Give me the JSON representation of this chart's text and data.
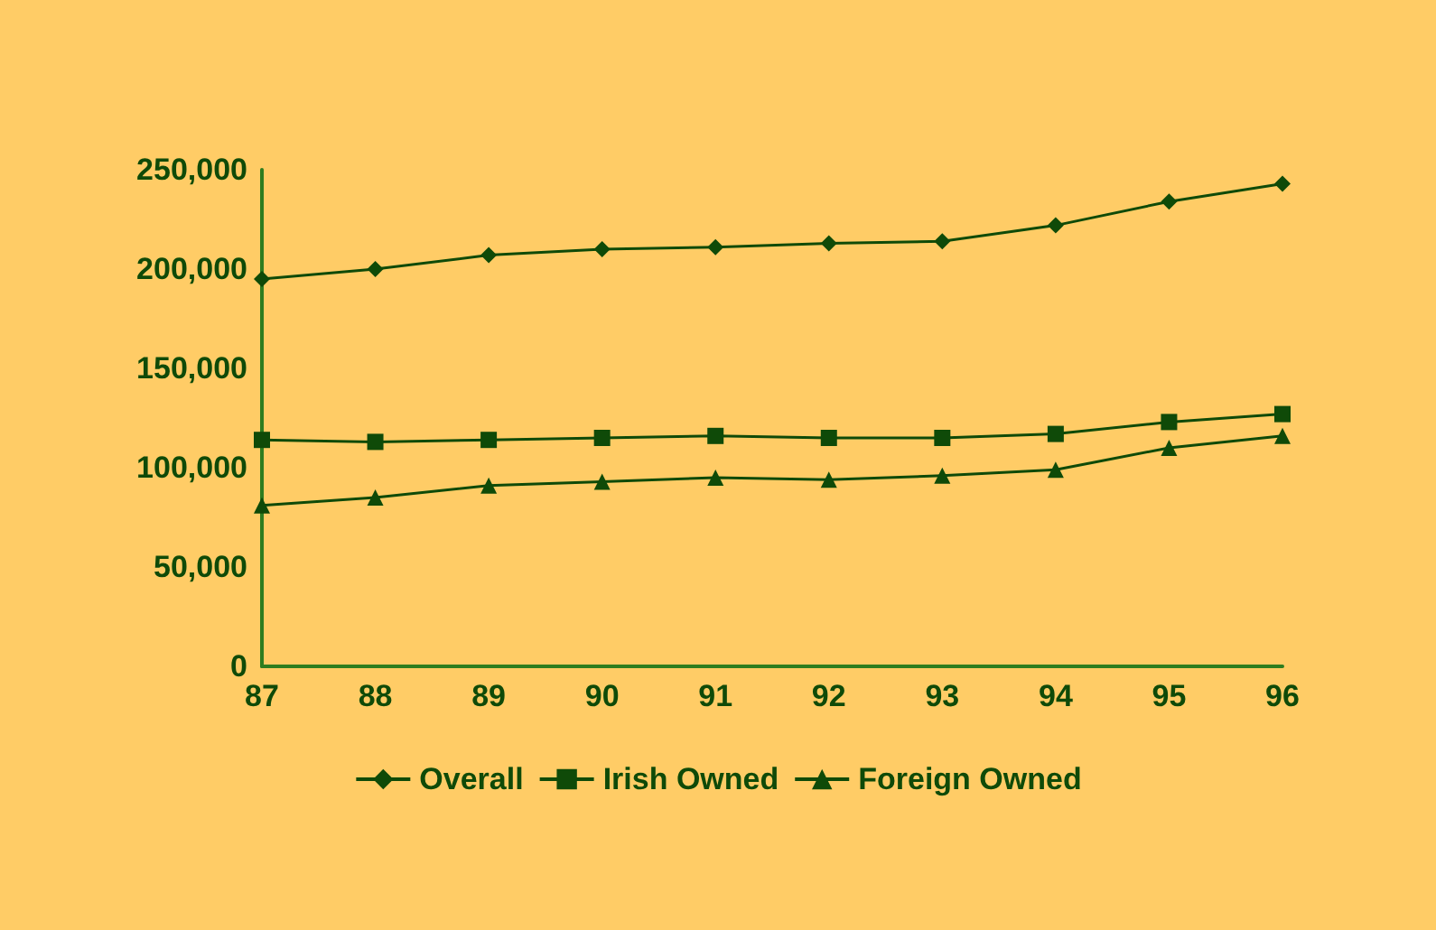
{
  "chart_data": {
    "type": "line",
    "categories": [
      "87",
      "88",
      "89",
      "90",
      "91",
      "92",
      "93",
      "94",
      "95",
      "96"
    ],
    "series": [
      {
        "name": "Overall",
        "color": "#0f4a08",
        "marker": "diamond",
        "values": [
          195000,
          200000,
          207000,
          210000,
          211000,
          213000,
          214000,
          222000,
          234000,
          243000
        ]
      },
      {
        "name": "Irish Owned",
        "color": "#0f4a08",
        "marker": "square",
        "values": [
          114000,
          113000,
          114000,
          115000,
          116000,
          115000,
          115000,
          117000,
          123000,
          127000
        ]
      },
      {
        "name": "Foreign Owned",
        "color": "#0f4a08",
        "marker": "triangle",
        "values": [
          81000,
          85000,
          91000,
          93000,
          95000,
          94000,
          96000,
          99000,
          110000,
          116000
        ]
      }
    ],
    "ylim": [
      0,
      250000
    ],
    "yticks": [
      0,
      {
        "value": 50000,
        "label": "50,000"
      },
      {
        "value": 100000,
        "label": "100,000"
      },
      {
        "value": 150000,
        "label": "150,000"
      },
      {
        "value": 200000,
        "label": "200,000"
      },
      {
        "value": 250000,
        "label": "250,000"
      }
    ],
    "grid": false,
    "legend": "bottom"
  }
}
